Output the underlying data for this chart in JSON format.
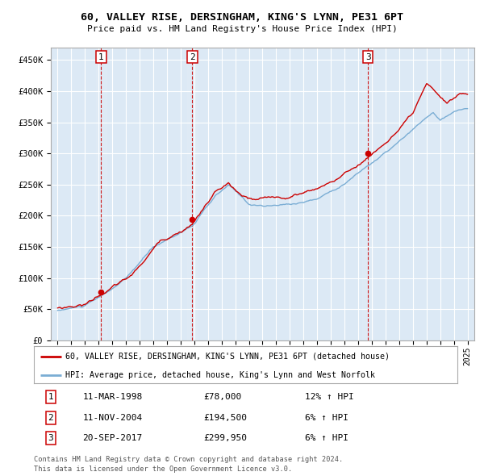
{
  "title1": "60, VALLEY RISE, DERSINGHAM, KING'S LYNN, PE31 6PT",
  "title2": "Price paid vs. HM Land Registry's House Price Index (HPI)",
  "plot_bg_color": "#dce9f5",
  "yticks": [
    0,
    50000,
    100000,
    150000,
    200000,
    250000,
    300000,
    350000,
    400000,
    450000
  ],
  "ytick_labels": [
    "£0",
    "£50K",
    "£100K",
    "£150K",
    "£200K",
    "£250K",
    "£300K",
    "£350K",
    "£400K",
    "£450K"
  ],
  "sale_year_vals": [
    1998.19,
    2004.86,
    2017.72
  ],
  "sale_price_vals": [
    78000,
    194500,
    299950
  ],
  "sale_labels": [
    "1",
    "2",
    "3"
  ],
  "sale_dates": [
    "11-MAR-1998",
    "11-NOV-2004",
    "20-SEP-2017"
  ],
  "sale_prices_str": [
    "£78,000",
    "£194,500",
    "£299,950"
  ],
  "sale_pcts": [
    "12% ↑ HPI",
    "6% ↑ HPI",
    "6% ↑ HPI"
  ],
  "legend_line1": "60, VALLEY RISE, DERSINGHAM, KING'S LYNN, PE31 6PT (detached house)",
  "legend_line2": "HPI: Average price, detached house, King's Lynn and West Norfolk",
  "footer1": "Contains HM Land Registry data © Crown copyright and database right 2024.",
  "footer2": "This data is licensed under the Open Government Licence v3.0.",
  "red_color": "#cc0000",
  "blue_color": "#7aadd4",
  "grid_color": "#ffffff",
  "spine_color": "#aaaaaa",
  "xlim": [
    1994.5,
    2025.5
  ],
  "ylim": [
    0,
    470000
  ]
}
